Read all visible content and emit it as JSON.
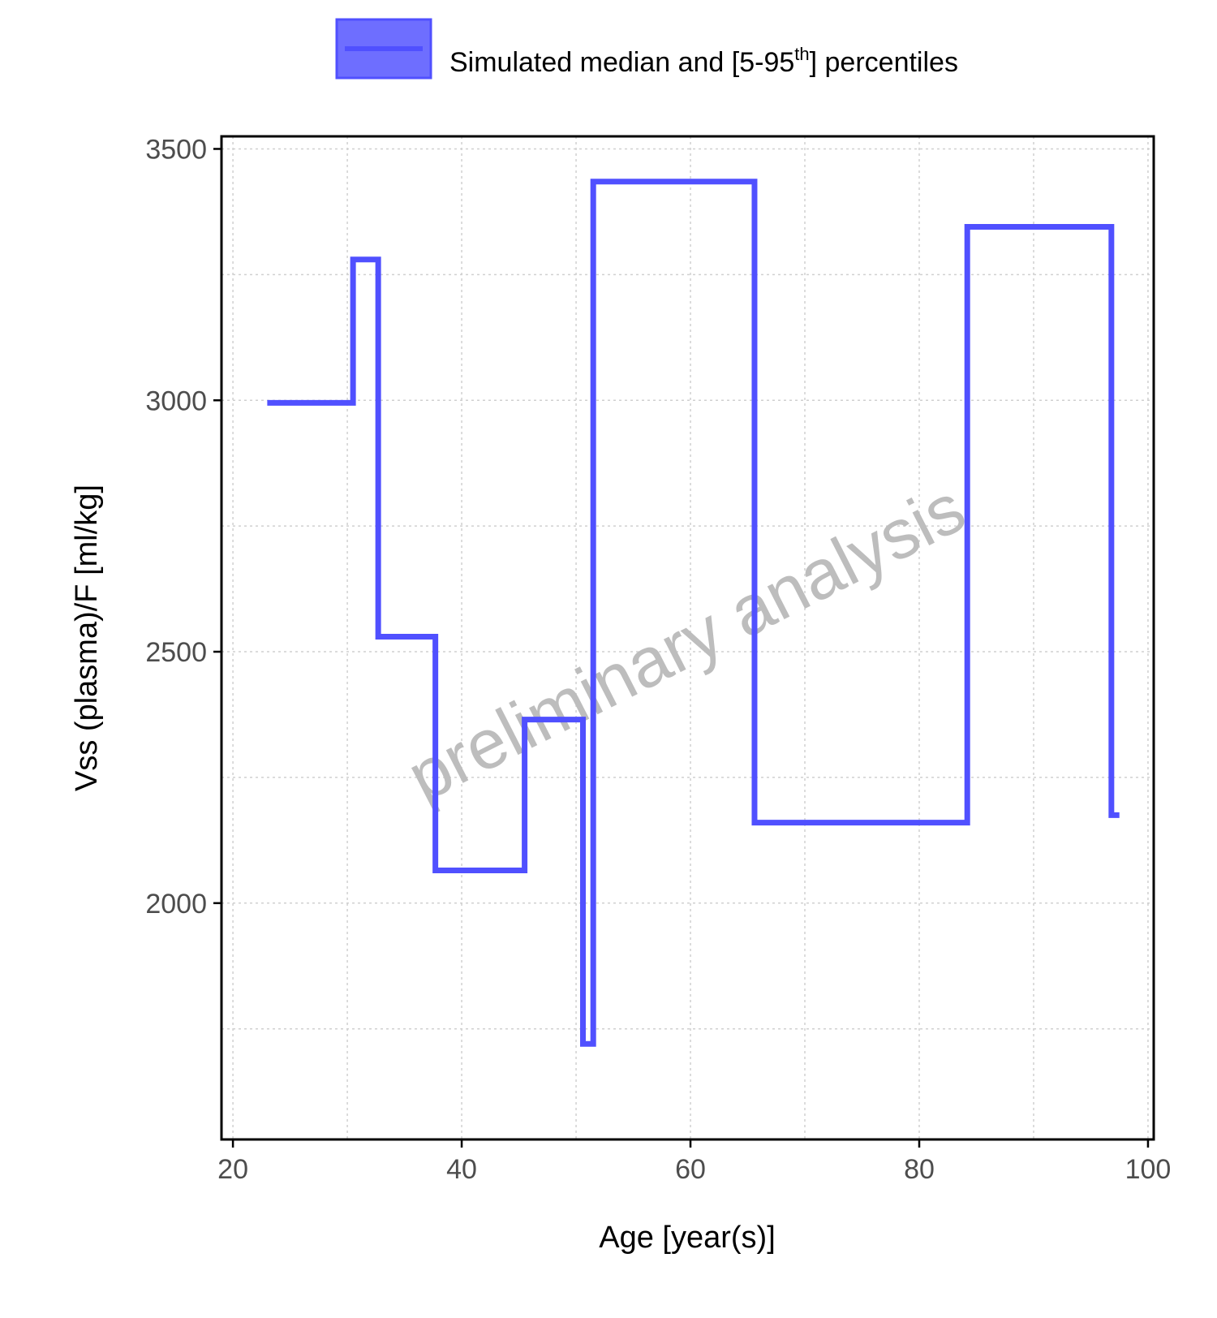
{
  "chart_data": {
    "type": "line",
    "title": "",
    "xlabel": "Age [year(s)]",
    "ylabel": "Vss (plasma)/F [ml/kg]",
    "xlim": [
      19,
      100.5
    ],
    "ylim": [
      1530,
      3525
    ],
    "x_ticks": [
      20,
      40,
      60,
      80,
      100
    ],
    "y_ticks": [
      2000,
      2500,
      3000,
      3500
    ],
    "x_tick_labels": [
      "20",
      "40",
      "60",
      "80",
      "100"
    ],
    "y_tick_labels": [
      "2000",
      "2500",
      "3000",
      "3500"
    ],
    "grid": true,
    "legend": {
      "placement": "top-center",
      "label_main": "Simulated median and [5-95",
      "label_sup": "th",
      "label_end": "] percentiles"
    },
    "watermark": "preliminary analysis",
    "series": [
      {
        "color": "#5050ff",
        "step": true,
        "x": [
          23,
          30.5,
          32.7,
          37.7,
          45.5,
          50.6,
          50.8,
          51.5,
          65.6,
          84.2,
          96.8,
          97.5
        ],
        "y": [
          2995,
          3280,
          2530,
          2065,
          2365,
          1720,
          1720,
          3435,
          2160,
          3345,
          2175,
          2175
        ]
      }
    ],
    "colors": {
      "line": "#5050ff",
      "legend_fill": "#6e6eff",
      "legend_stroke": "#5050ff",
      "grid": "#d0d0d0",
      "axis": "#000000",
      "watermark": "#bdbdbd"
    }
  }
}
